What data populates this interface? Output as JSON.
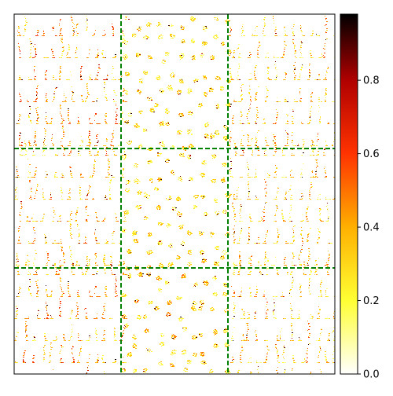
{
  "chart_data": {
    "type": "heatmap",
    "title": "",
    "xlabel": "",
    "ylabel": "",
    "grid": {
      "rows": 3,
      "cols": 3,
      "divider_style": "dashed",
      "divider_color": "#008000"
    },
    "panels": [
      {
        "row": 0,
        "col": 0,
        "density": 0.34,
        "mean_intensity": 0.38,
        "pattern": "vertical"
      },
      {
        "row": 0,
        "col": 1,
        "density": 0.4,
        "mean_intensity": 0.22,
        "pattern": "loops"
      },
      {
        "row": 0,
        "col": 2,
        "density": 0.33,
        "mean_intensity": 0.3,
        "pattern": "vertical"
      },
      {
        "row": 1,
        "col": 0,
        "density": 0.34,
        "mean_intensity": 0.33,
        "pattern": "vertical"
      },
      {
        "row": 1,
        "col": 1,
        "density": 0.42,
        "mean_intensity": 0.22,
        "pattern": "loops"
      },
      {
        "row": 1,
        "col": 2,
        "density": 0.33,
        "mean_intensity": 0.3,
        "pattern": "vertical"
      },
      {
        "row": 2,
        "col": 0,
        "density": 0.35,
        "mean_intensity": 0.35,
        "pattern": "vertical"
      },
      {
        "row": 2,
        "col": 1,
        "density": 0.38,
        "mean_intensity": 0.27,
        "pattern": "loops"
      },
      {
        "row": 2,
        "col": 2,
        "density": 0.33,
        "mean_intensity": 0.3,
        "pattern": "vertical"
      }
    ],
    "colormap": "afmhot_r",
    "colormap_stops": [
      {
        "value": 0.0,
        "color": "#ffffff"
      },
      {
        "value": 0.2,
        "color": "#ffff33"
      },
      {
        "value": 0.4,
        "color": "#ffb000"
      },
      {
        "value": 0.6,
        "color": "#ff3300"
      },
      {
        "value": 0.8,
        "color": "#b00000"
      },
      {
        "value": 1.0,
        "color": "#000000"
      }
    ],
    "colorbar": {
      "min": 0.0,
      "max": 0.98,
      "ticks": [
        0.0,
        0.2,
        0.4,
        0.6,
        0.8
      ],
      "tick_labels": [
        "0.0",
        "0.2",
        "0.4",
        "0.6",
        "0.8"
      ]
    },
    "axes": {
      "x_ticks": [],
      "y_ticks": []
    }
  }
}
